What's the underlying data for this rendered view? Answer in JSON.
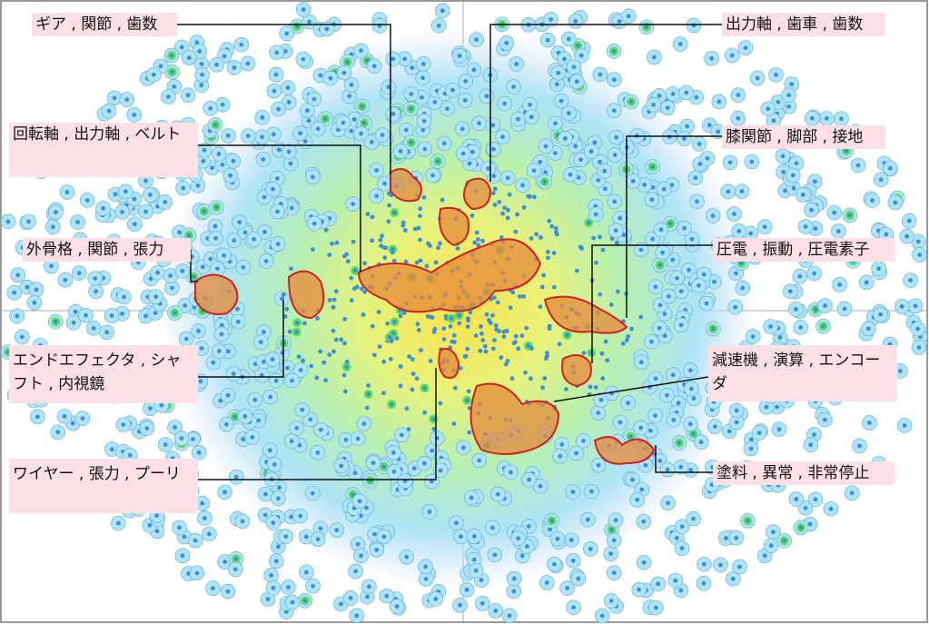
{
  "labels": [
    {
      "text": "ギア , 関節 , 歯数"
    },
    {
      "text": "出力軸 , 歯車 , 歯数"
    },
    {
      "text": "回転軸 , 出力軸 , ベルト"
    },
    {
      "text": "膝関節 , 脚部 , 接地"
    },
    {
      "text": "外骨格 , 関節 , 張力"
    },
    {
      "text": "圧電 , 振動 , 圧電素子"
    },
    {
      "text": "エンドエフェクタ , シャフト , 内視鏡"
    },
    {
      "text": "減速機 , 演算 , エンコーダ"
    },
    {
      "text": "ワイヤー , 張力 , プーリ"
    },
    {
      "text": "塗料 , 異常 , 非常停止"
    }
  ]
}
